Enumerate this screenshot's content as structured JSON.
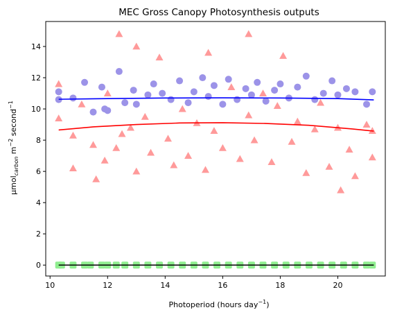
{
  "chart_data": {
    "type": "scatter",
    "title": "MEC Gross Canopy Photosynthesis outputs",
    "xlabel": {
      "prefix": "Photoperiod (hours day",
      "sup": "−1",
      "suffix": ")"
    },
    "ylabel": {
      "prefix": "µmol",
      "sub": "carbon",
      "mid": " m",
      "sup1": "−2",
      "mid2": " second",
      "sup2": "−1"
    },
    "xlim": [
      9.85,
      21.65
    ],
    "ylim": [
      -0.7,
      15.6
    ],
    "xticks": [
      10,
      12,
      14,
      16,
      18,
      20
    ],
    "yticks": [
      0,
      2,
      4,
      6,
      8,
      10,
      12,
      14
    ],
    "xtick_labels": [
      "10",
      "12",
      "14",
      "16",
      "18",
      "20"
    ],
    "ytick_labels": [
      "0",
      "2",
      "4",
      "6",
      "8",
      "10",
      "12",
      "14"
    ],
    "grid": false,
    "legend": "none",
    "colors": {
      "circles": "#9c93e8",
      "triangles": "#ff9a9a",
      "green_points": "#90ee90",
      "fit_blue": "#0000ff",
      "fit_red": "#ff0000",
      "fit_black": "#000000"
    },
    "scatter_circles_sample": {
      "x": [
        10.3,
        10.3,
        10.8,
        11.2,
        11.5,
        11.8,
        11.9,
        12.0,
        12.4,
        12.6,
        12.9,
        13.0,
        13.4,
        13.6,
        13.9,
        14.2,
        14.5,
        14.8,
        15.0,
        15.3,
        15.5,
        15.7,
        16.0,
        16.2,
        16.5,
        16.8,
        17.0,
        17.2,
        17.5,
        17.8,
        18.0,
        18.3,
        18.6,
        18.9,
        19.2,
        19.5,
        19.8,
        20.0,
        20.3,
        20.6,
        21.0,
        21.2
      ],
      "y": [
        11.1,
        10.6,
        10.7,
        11.7,
        9.8,
        11.4,
        10.0,
        9.9,
        12.4,
        10.4,
        11.2,
        10.3,
        10.9,
        11.6,
        11.0,
        10.6,
        11.8,
        10.4,
        11.1,
        12.0,
        10.8,
        11.5,
        10.3,
        11.9,
        10.6,
        11.3,
        10.9,
        11.7,
        10.5,
        11.2,
        11.6,
        10.7,
        11.4,
        12.1,
        10.6,
        11.0,
        11.8,
        10.9,
        11.3,
        11.1,
        10.3,
        11.1
      ]
    },
    "scatter_triangles_sample": {
      "x": [
        10.3,
        10.3,
        10.8,
        10.8,
        11.1,
        11.5,
        11.6,
        11.9,
        12.0,
        12.3,
        12.4,
        12.5,
        12.8,
        13.0,
        13.0,
        13.3,
        13.5,
        13.8,
        14.1,
        14.3,
        14.6,
        14.8,
        15.1,
        15.4,
        15.5,
        15.7,
        16.0,
        16.3,
        16.6,
        16.9,
        16.9,
        17.1,
        17.4,
        17.7,
        17.9,
        18.1,
        18.4,
        18.6,
        18.9,
        19.2,
        19.4,
        19.7,
        20.0,
        20.1,
        20.4,
        20.6,
        21.0,
        21.2,
        21.2
      ],
      "y": [
        11.6,
        9.4,
        6.2,
        8.3,
        10.3,
        7.7,
        5.5,
        6.7,
        11.0,
        7.5,
        14.8,
        8.4,
        8.8,
        14.0,
        6.0,
        9.5,
        7.2,
        13.3,
        8.1,
        6.4,
        10.0,
        7.0,
        9.1,
        6.1,
        13.6,
        8.6,
        7.5,
        11.4,
        6.8,
        14.8,
        9.6,
        8.0,
        11.0,
        6.6,
        10.2,
        13.4,
        7.9,
        9.2,
        5.9,
        8.7,
        10.4,
        6.3,
        8.8,
        4.8,
        7.4,
        5.7,
        9.0,
        6.9,
        8.6
      ]
    },
    "scatter_green_sample": {
      "x": [
        10.3,
        10.4,
        10.8,
        11.2,
        11.4,
        11.8,
        12.0,
        12.3,
        12.6,
        13.0,
        13.4,
        13.8,
        14.2,
        14.6,
        15.0,
        15.4,
        15.8,
        16.2,
        16.6,
        17.0,
        17.4,
        17.8,
        18.2,
        18.6,
        19.0,
        19.4,
        19.8,
        20.2,
        20.6,
        21.0,
        21.2
      ],
      "y": [
        0,
        0,
        0,
        0,
        0,
        0,
        0,
        0,
        0,
        0,
        0,
        0,
        0,
        0,
        0,
        0,
        0,
        0,
        0,
        0,
        0,
        0,
        0,
        0,
        0,
        0,
        0,
        0,
        0,
        0,
        0
      ]
    },
    "series": [
      {
        "values_x": [
          10.3,
          12,
          14,
          16,
          18,
          20,
          21.25
        ],
        "values_y": [
          10.62,
          10.66,
          10.7,
          10.71,
          10.7,
          10.66,
          10.58
        ]
      },
      {
        "values_x": [
          10.3,
          11.5,
          13,
          14.5,
          16,
          17.5,
          19,
          20.5,
          21.25
        ],
        "values_y": [
          8.65,
          8.85,
          9.0,
          9.1,
          9.12,
          9.07,
          8.95,
          8.72,
          8.58
        ]
      },
      {
        "values_x": [
          10.3,
          21.25
        ],
        "values_y": [
          0.0,
          0.0
        ]
      }
    ]
  }
}
